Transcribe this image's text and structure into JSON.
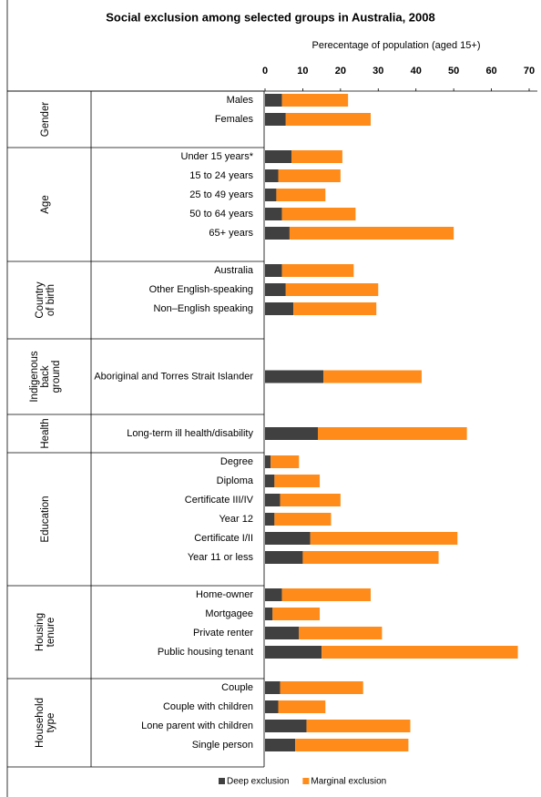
{
  "chart_data": {
    "type": "stacked-bar-horizontal",
    "title": "Social exclusion among selected groups in Australia, 2008",
    "x_label": "Perecentage of population (aged  15+)",
    "xlim": [
      0,
      70
    ],
    "xticks": [
      0,
      10,
      20,
      30,
      40,
      50,
      60,
      70
    ],
    "groups": [
      {
        "label": [
          "Gender"
        ],
        "categories": [
          "Males",
          "Females"
        ]
      },
      {
        "label": [
          "Age"
        ],
        "categories": [
          "Under 15 years*",
          "15 to 24 years",
          "25 to 49 years",
          "50 to 64 years",
          "65+ years"
        ]
      },
      {
        "label": [
          "Country",
          "of birth"
        ],
        "categories": [
          "Australia",
          "Other English-speaking",
          "Non–English speaking"
        ]
      },
      {
        "label": [
          "Indigenous",
          "back",
          "ground"
        ],
        "categories": [
          "Aboriginal and Torres Strait Islander"
        ]
      },
      {
        "label": [
          "Health"
        ],
        "categories": [
          "Long-term ill health/disability"
        ]
      },
      {
        "label": [
          "Education"
        ],
        "categories": [
          "Degree",
          "Diploma",
          "Certificate III/IV",
          "Year 12",
          "Certificate I/II",
          "Year 11 or less"
        ]
      },
      {
        "label": [
          "Housing",
          "tenure"
        ],
        "categories": [
          "Home-owner",
          "Mortgagee",
          "Private renter",
          "Public housing tenant"
        ]
      },
      {
        "label": [
          "Household",
          "type"
        ],
        "categories": [
          "Couple",
          "Couple with children",
          "Lone parent with children",
          "Single person"
        ]
      }
    ],
    "series": [
      {
        "name": "Deep exclusion",
        "color": "#404040",
        "values": [
          4.5,
          5.5,
          7,
          3.5,
          3,
          4.5,
          6.5,
          4.5,
          5.5,
          7.5,
          15.5,
          14,
          1.5,
          2.5,
          4,
          2.5,
          12,
          10,
          4.5,
          2,
          9,
          15,
          4,
          3.5,
          11,
          8
        ]
      },
      {
        "name": "Marginal exclusion",
        "color": "#ff8c1a",
        "values": [
          17.5,
          22.5,
          13.5,
          16.5,
          13,
          19.5,
          43.5,
          19,
          24.5,
          22,
          26,
          39.5,
          7.5,
          12,
          16,
          15,
          39,
          36,
          23.5,
          12.5,
          22,
          52,
          22,
          12.5,
          27.5,
          30
        ]
      }
    ],
    "legend": "bottom"
  }
}
